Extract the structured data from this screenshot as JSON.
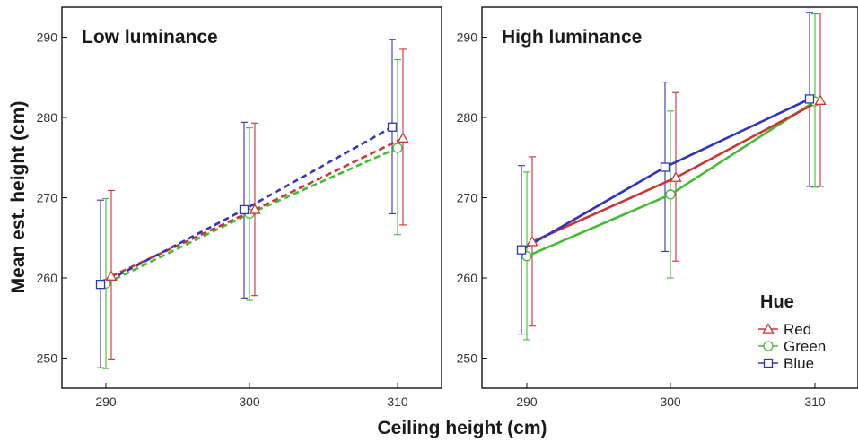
{
  "chart_data": {
    "type": "line",
    "xlabel": "Ceiling height (cm)",
    "ylabel": "Mean est. height (cm)",
    "legend": {
      "title": "Hue",
      "placement": "bottom-right of right panel",
      "entries": [
        {
          "name": "Red",
          "color": "#cc3333",
          "marker": "triangle"
        },
        {
          "name": "Green",
          "color": "#44bb33",
          "marker": "circle"
        },
        {
          "name": "Blue",
          "color": "#3333bb",
          "marker": "square"
        }
      ]
    },
    "x_ticks": [
      "290",
      "300",
      "310"
    ],
    "y_ticks": [
      "250",
      "260",
      "270",
      "280",
      "290"
    ],
    "ylim": [
      245,
      296
    ],
    "grid": false,
    "panels": [
      {
        "title": "Low luminance",
        "line_style": "dashed",
        "series": [
          {
            "name": "Red",
            "x": [
              290,
              300,
              310
            ],
            "values": [
              260.2,
              268.5,
              277.4
            ],
            "error_low": [
              249.9,
              257.8,
              266.6
            ],
            "error_high": [
              270.9,
              279.3,
              288.5
            ]
          },
          {
            "name": "Green",
            "x": [
              290,
              300,
              310
            ],
            "values": [
              259.3,
              268.0,
              276.2
            ],
            "error_low": [
              248.7,
              257.2,
              265.4
            ],
            "error_high": [
              269.9,
              278.7,
              287.2
            ]
          },
          {
            "name": "Blue",
            "x": [
              290,
              300,
              310
            ],
            "values": [
              259.2,
              268.5,
              278.8
            ],
            "error_low": [
              248.8,
              257.5,
              268.0
            ],
            "error_high": [
              269.7,
              279.4,
              289.7
            ]
          }
        ]
      },
      {
        "title": "High luminance",
        "line_style": "solid",
        "series": [
          {
            "name": "Red",
            "x": [
              290,
              300,
              310
            ],
            "values": [
              264.5,
              272.5,
              282.1
            ],
            "error_low": [
              254.0,
              262.1,
              271.4
            ],
            "error_high": [
              275.1,
              283.1,
              293.0
            ]
          },
          {
            "name": "Green",
            "x": [
              290,
              300,
              310
            ],
            "values": [
              262.7,
              270.4,
              282.0
            ],
            "error_low": [
              252.3,
              260.0,
              271.3
            ],
            "error_high": [
              273.2,
              280.8,
              292.9
            ]
          },
          {
            "name": "Blue",
            "x": [
              290,
              300,
              310
            ],
            "values": [
              263.5,
              273.8,
              282.3
            ],
            "error_low": [
              253.0,
              263.3,
              271.4
            ],
            "error_high": [
              274.0,
              284.4,
              293.1
            ]
          }
        ]
      }
    ]
  }
}
